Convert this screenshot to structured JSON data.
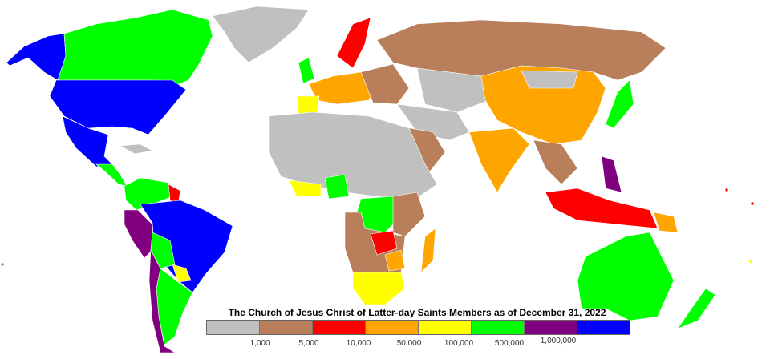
{
  "legend": {
    "title": "The Church of Jesus Christ of Latter-day Saints Members as of December 31, 2022",
    "colors": [
      "#c0c0c0",
      "#b97f5b",
      "#ff0000",
      "#ffa500",
      "#ffff00",
      "#00ff00",
      "#800080",
      "#0000ff"
    ],
    "thresholds": [
      "1,000",
      "5,000",
      "10,000",
      "50,000",
      "100,000",
      "500,000",
      "1,000,000"
    ]
  }
}
